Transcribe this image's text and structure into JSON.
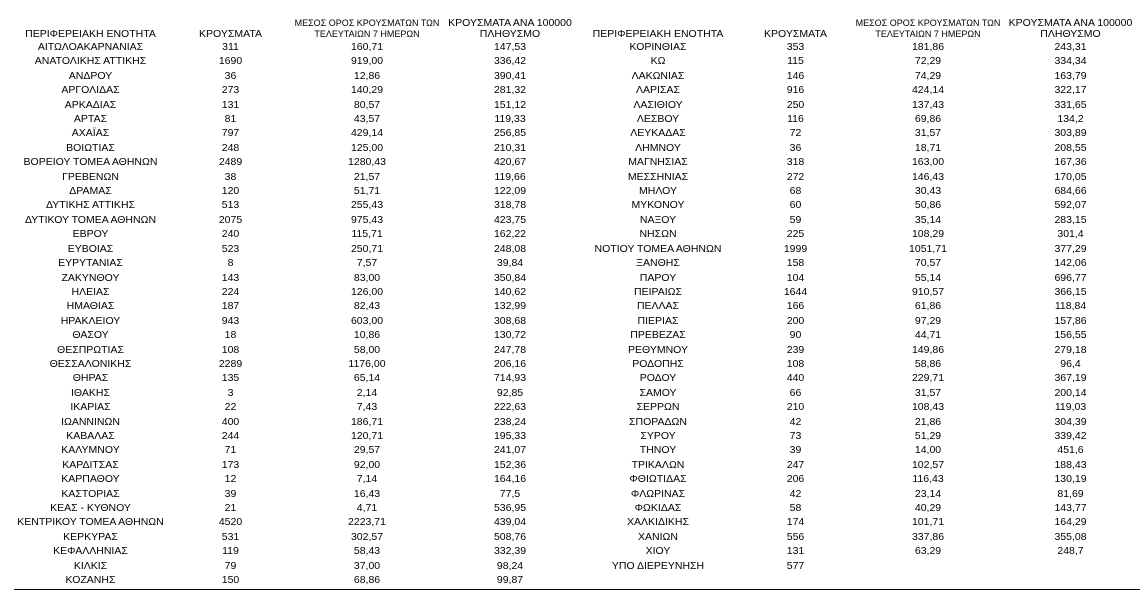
{
  "left": {
    "headers": [
      "ΠΕΡΙΦΕΡΕΙΑΚΗ ΕΝΟΤΗΤΑ",
      "ΚΡΟΥΣΜΑΤΑ",
      "ΜΕΣΟΣ ΟΡΟΣ ΚΡΟΥΣΜΑΤΩΝ ΤΩΝ ΤΕΛΕΥΤΑΙΩΝ 7 ΗΜΕΡΩΝ",
      "ΚΡΟΥΣΜΑΤΑ ΑΝΑ 100000 ΠΛΗΘΥΣΜΟ"
    ],
    "rows": [
      [
        "ΑΙΤΩΛΟΑΚΑΡΝΑΝΙΑΣ",
        "311",
        "160,71",
        "147,53"
      ],
      [
        "ΑΝΑΤΟΛΙΚΗΣ ΑΤΤΙΚΗΣ",
        "1690",
        "919,00",
        "336,42"
      ],
      [
        "ΑΝΔΡΟΥ",
        "36",
        "12,86",
        "390,41"
      ],
      [
        "ΑΡΓΟΛΙΔΑΣ",
        "273",
        "140,29",
        "281,32"
      ],
      [
        "ΑΡΚΑΔΙΑΣ",
        "131",
        "80,57",
        "151,12"
      ],
      [
        "ΑΡΤΑΣ",
        "81",
        "43,57",
        "119,33"
      ],
      [
        "ΑΧΑΪΑΣ",
        "797",
        "429,14",
        "256,85"
      ],
      [
        "ΒΟΙΩΤΙΑΣ",
        "248",
        "125,00",
        "210,31"
      ],
      [
        "ΒΟΡΕΙΟΥ ΤΟΜΕΑ ΑΘΗΝΩΝ",
        "2489",
        "1280,43",
        "420,67"
      ],
      [
        "ΓΡΕΒΕΝΩΝ",
        "38",
        "21,57",
        "119,66"
      ],
      [
        "ΔΡΑΜΑΣ",
        "120",
        "51,71",
        "122,09"
      ],
      [
        "ΔΥΤΙΚΗΣ ΑΤΤΙΚΗΣ",
        "513",
        "255,43",
        "318,78"
      ],
      [
        "ΔΥΤΙΚΟΥ ΤΟΜΕΑ ΑΘΗΝΩΝ",
        "2075",
        "975,43",
        "423,75"
      ],
      [
        "ΕΒΡΟΥ",
        "240",
        "115,71",
        "162,22"
      ],
      [
        "ΕΥΒΟΙΑΣ",
        "523",
        "250,71",
        "248,08"
      ],
      [
        "ΕΥΡΥΤΑΝΙΑΣ",
        "8",
        "7,57",
        "39,84"
      ],
      [
        "ΖΑΚΥΝΘΟΥ",
        "143",
        "83,00",
        "350,84"
      ],
      [
        "ΗΛΕΙΑΣ",
        "224",
        "126,00",
        "140,62"
      ],
      [
        "ΗΜΑΘΙΑΣ",
        "187",
        "82,43",
        "132,99"
      ],
      [
        "ΗΡΑΚΛΕΙΟΥ",
        "943",
        "603,00",
        "308,68"
      ],
      [
        "ΘΑΣΟΥ",
        "18",
        "10,86",
        "130,72"
      ],
      [
        "ΘΕΣΠΡΩΤΙΑΣ",
        "108",
        "58,00",
        "247,78"
      ],
      [
        "ΘΕΣΣΑΛΟΝΙΚΗΣ",
        "2289",
        "1176,00",
        "206,16"
      ],
      [
        "ΘΗΡΑΣ",
        "135",
        "65,14",
        "714,93"
      ],
      [
        "ΙΘΑΚΗΣ",
        "3",
        "2,14",
        "92,85"
      ],
      [
        "ΙΚΑΡΙΑΣ",
        "22",
        "7,43",
        "222,63"
      ],
      [
        "ΙΩΑΝΝΙΝΩΝ",
        "400",
        "186,71",
        "238,24"
      ],
      [
        "ΚΑΒΑΛΑΣ",
        "244",
        "120,71",
        "195,33"
      ],
      [
        "ΚΑΛΥΜΝΟΥ",
        "71",
        "29,57",
        "241,07"
      ],
      [
        "ΚΑΡΔΙΤΣΑΣ",
        "173",
        "92,00",
        "152,36"
      ],
      [
        "ΚΑΡΠΑΘΟΥ",
        "12",
        "7,14",
        "164,16"
      ],
      [
        "ΚΑΣΤΟΡΙΑΣ",
        "39",
        "16,43",
        "77,5"
      ],
      [
        "ΚΕΑΣ - ΚΥΘΝΟΥ",
        "21",
        "4,71",
        "536,95"
      ],
      [
        "ΚΕΝΤΡΙΚΟΥ ΤΟΜΕΑ ΑΘΗΝΩΝ",
        "4520",
        "2223,71",
        "439,04"
      ],
      [
        "ΚΕΡΚΥΡΑΣ",
        "531",
        "302,57",
        "508,76"
      ],
      [
        "ΚΕΦΑΛΛΗΝΙΑΣ",
        "119",
        "58,43",
        "332,39"
      ],
      [
        "ΚΙΛΚΙΣ",
        "79",
        "37,00",
        "98,24"
      ],
      [
        "ΚΟΖΑΝΗΣ",
        "150",
        "68,86",
        "99,87"
      ]
    ]
  },
  "right": {
    "headers": [
      "ΠΕΡΙΦΕΡΕΙΑΚΗ ΕΝΟΤΗΤΑ",
      "ΚΡΟΥΣΜΑΤΑ",
      "ΜΕΣΟΣ ΟΡΟΣ ΚΡΟΥΣΜΑΤΩΝ ΤΩΝ ΤΕΛΕΥΤΑΙΩΝ 7 ΗΜΕΡΩΝ",
      "ΚΡΟΥΣΜΑΤΑ ΑΝΑ 100000 ΠΛΗΘΥΣΜΟ"
    ],
    "rows": [
      [
        "ΚΟΡΙΝΘΙΑΣ",
        "353",
        "181,86",
        "243,31"
      ],
      [
        "ΚΩ",
        "115",
        "72,29",
        "334,34"
      ],
      [
        "ΛΑΚΩΝΙΑΣ",
        "146",
        "74,29",
        "163,79"
      ],
      [
        "ΛΑΡΙΣΑΣ",
        "916",
        "424,14",
        "322,17"
      ],
      [
        "ΛΑΣΙΘΙΟΥ",
        "250",
        "137,43",
        "331,65"
      ],
      [
        "ΛΕΣΒΟΥ",
        "116",
        "69,86",
        "134,2"
      ],
      [
        "ΛΕΥΚΑΔΑΣ",
        "72",
        "31,57",
        "303,89"
      ],
      [
        "ΛΗΜΝΟΥ",
        "36",
        "18,71",
        "208,55"
      ],
      [
        "ΜΑΓΝΗΣΙΑΣ",
        "318",
        "163,00",
        "167,36"
      ],
      [
        "ΜΕΣΣΗΝΙΑΣ",
        "272",
        "146,43",
        "170,05"
      ],
      [
        "ΜΗΛΟΥ",
        "68",
        "30,43",
        "684,66"
      ],
      [
        "ΜΥΚΟΝΟΥ",
        "60",
        "50,86",
        "592,07"
      ],
      [
        "ΝΑΞΟΥ",
        "59",
        "35,14",
        "283,15"
      ],
      [
        "ΝΗΣΩΝ",
        "225",
        "108,29",
        "301,4"
      ],
      [
        "ΝΟΤΙΟΥ ΤΟΜΕΑ ΑΘΗΝΩΝ",
        "1999",
        "1051,71",
        "377,29"
      ],
      [
        "ΞΑΝΘΗΣ",
        "158",
        "70,57",
        "142,06"
      ],
      [
        "ΠΑΡΟΥ",
        "104",
        "55,14",
        "696,77"
      ],
      [
        "ΠΕΙΡΑΙΩΣ",
        "1644",
        "910,57",
        "366,15"
      ],
      [
        "ΠΕΛΛΑΣ",
        "166",
        "61,86",
        "118,84"
      ],
      [
        "ΠΙΕΡΙΑΣ",
        "200",
        "97,29",
        "157,86"
      ],
      [
        "ΠΡΕΒΕΖΑΣ",
        "90",
        "44,71",
        "156,55"
      ],
      [
        "ΡΕΘΥΜΝΟΥ",
        "239",
        "149,86",
        "279,18"
      ],
      [
        "ΡΟΔΟΠΗΣ",
        "108",
        "58,86",
        "96,4"
      ],
      [
        "ΡΟΔΟΥ",
        "440",
        "229,71",
        "367,19"
      ],
      [
        "ΣΑΜΟΥ",
        "66",
        "31,57",
        "200,14"
      ],
      [
        "ΣΕΡΡΩΝ",
        "210",
        "108,43",
        "119,03"
      ],
      [
        "ΣΠΟΡΑΔΩΝ",
        "42",
        "21,86",
        "304,39"
      ],
      [
        "ΣΥΡΟΥ",
        "73",
        "51,29",
        "339,42"
      ],
      [
        "ΤΗΝΟΥ",
        "39",
        "14,00",
        "451,6"
      ],
      [
        "ΤΡΙΚΑΛΩΝ",
        "247",
        "102,57",
        "188,43"
      ],
      [
        "ΦΘΙΩΤΙΔΑΣ",
        "206",
        "116,43",
        "130,19"
      ],
      [
        "ΦΛΩΡΙΝΑΣ",
        "42",
        "23,14",
        "81,69"
      ],
      [
        "ΦΩΚΙΔΑΣ",
        "58",
        "40,29",
        "143,77"
      ],
      [
        "ΧΑΛΚΙΔΙΚΗΣ",
        "174",
        "101,71",
        "164,29"
      ],
      [
        "ΧΑΝΙΩΝ",
        "556",
        "337,86",
        "355,08"
      ],
      [
        "ΧΙΟΥ",
        "131",
        "63,29",
        "248,7"
      ],
      [
        "ΥΠΟ ΔΙΕΡΕΥΝΗΣΗ",
        "577"
      ]
    ]
  }
}
